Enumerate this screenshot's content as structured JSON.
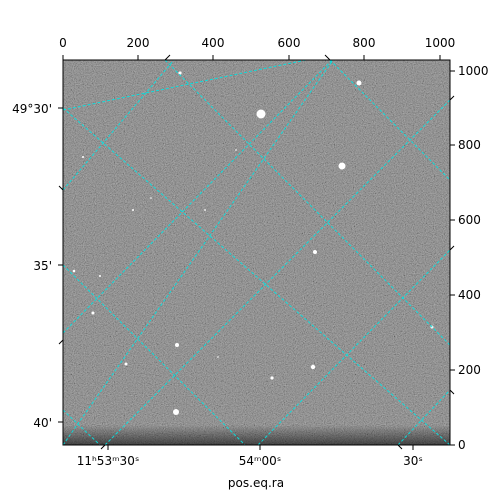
{
  "image": {
    "x_pixel_ticks": [
      "0",
      "200",
      "400",
      "600",
      "800",
      "1000"
    ],
    "y_pixel_ticks": [
      "0",
      "200",
      "400",
      "600",
      "800",
      "1000"
    ],
    "dec_ticks": [
      "49°30'",
      "35'",
      "40'"
    ],
    "ra_ticks": [
      {
        "hms": "11ʰ53ᵐ30ˢ"
      },
      {
        "hms": "54ᵐ00ˢ"
      },
      {
        "hms": "30ˢ"
      }
    ],
    "xlabel": "pos.eq.ra",
    "grid_color": "#00e5e5",
    "background": "grayscale noise"
  }
}
